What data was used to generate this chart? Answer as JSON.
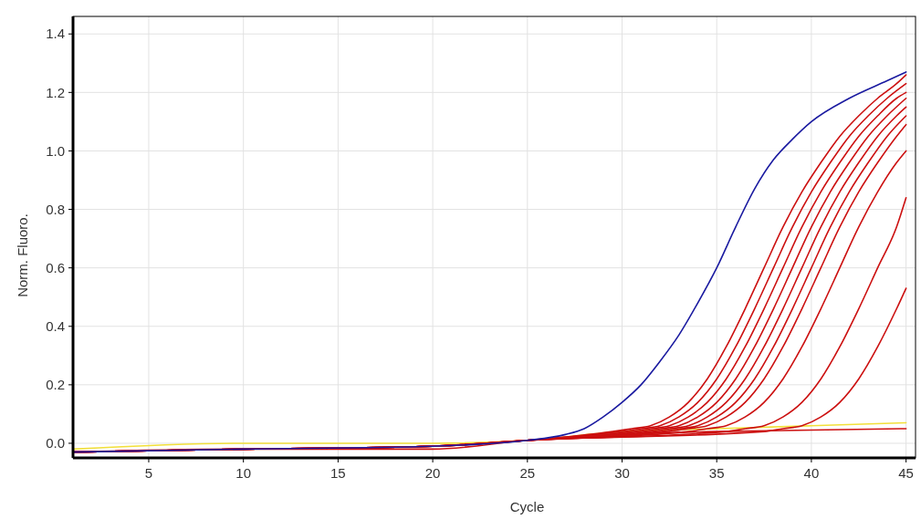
{
  "chart_data": {
    "type": "line",
    "xlabel": "Cycle",
    "ylabel": "Norm. Fluoro.",
    "xlim": [
      1,
      45.5
    ],
    "ylim": [
      -0.05,
      1.46
    ],
    "xticks": [
      5,
      10,
      15,
      20,
      25,
      30,
      35,
      40,
      45
    ],
    "yticks": [
      {
        "value": 0,
        "label": "0.0"
      },
      {
        "value": 0.2,
        "label": "0.2"
      },
      {
        "value": 0.4,
        "label": "0.4"
      },
      {
        "value": 0.6,
        "label": "0.6"
      },
      {
        "value": 0.8,
        "label": "0.8"
      },
      {
        "value": 1,
        "label": "1.0"
      },
      {
        "value": 1.2,
        "label": "1.2"
      },
      {
        "value": 1.4,
        "label": "1.4"
      }
    ],
    "grid": true,
    "marker": "none",
    "line_style": "solid",
    "series": [
      {
        "color": "#f2e03a",
        "x": [
          1,
          10,
          20,
          25,
          30,
          35,
          40,
          45
        ],
        "values": [
          -0.02,
          0,
          0,
          0.01,
          0.04,
          0.05,
          0.06,
          0.07
        ]
      },
      {
        "color": "#cc1010",
        "x": [
          1,
          10,
          20,
          25,
          30,
          35,
          40,
          45
        ],
        "values": [
          -0.03,
          -0.02,
          -0.02,
          0.01,
          0.03,
          0.04,
          0.045,
          0.05
        ]
      },
      {
        "color": "#cc1010",
        "x": [
          1,
          10,
          20,
          25,
          29.5,
          30.5,
          31.5,
          32.5,
          33.5,
          34.5,
          35.5,
          36.5,
          37.5,
          38.5,
          39.5,
          40.5,
          41.5,
          42.5,
          43.5,
          44.5,
          45
        ],
        "values": [
          -0.03,
          -0.02,
          -0.01,
          0.01,
          0.04,
          0.05,
          0.06,
          0.09,
          0.14,
          0.22,
          0.33,
          0.46,
          0.6,
          0.74,
          0.86,
          0.96,
          1.05,
          1.12,
          1.18,
          1.23,
          1.26
        ]
      },
      {
        "color": "#cc1010",
        "x": [
          1,
          10,
          20,
          25,
          30,
          31,
          32,
          33,
          34,
          35,
          36,
          37,
          38,
          39,
          40,
          41,
          42,
          43,
          44,
          45
        ],
        "values": [
          -0.03,
          -0.02,
          -0.01,
          0.01,
          0.04,
          0.05,
          0.06,
          0.09,
          0.14,
          0.22,
          0.33,
          0.46,
          0.6,
          0.74,
          0.86,
          0.96,
          1.05,
          1.12,
          1.18,
          1.23
        ]
      },
      {
        "color": "#cc1010",
        "x": [
          1,
          10,
          20,
          25,
          30.5,
          31.5,
          32.5,
          33.5,
          34.5,
          35.5,
          36.5,
          37.5,
          38.5,
          39.5,
          40.5,
          41.5,
          42.5,
          43.5,
          44.5,
          45
        ],
        "values": [
          -0.03,
          -0.02,
          -0.01,
          0.01,
          0.04,
          0.05,
          0.06,
          0.09,
          0.14,
          0.22,
          0.33,
          0.46,
          0.6,
          0.74,
          0.86,
          0.96,
          1.05,
          1.12,
          1.18,
          1.2
        ]
      },
      {
        "color": "#cc1010",
        "x": [
          1,
          10,
          20,
          25,
          31,
          32,
          33,
          34,
          35,
          36,
          37,
          38,
          39,
          40,
          41,
          42,
          43,
          44,
          45
        ],
        "values": [
          -0.03,
          -0.02,
          -0.01,
          0.01,
          0.04,
          0.05,
          0.06,
          0.09,
          0.14,
          0.22,
          0.33,
          0.46,
          0.6,
          0.74,
          0.86,
          0.96,
          1.05,
          1.12,
          1.18
        ]
      },
      {
        "color": "#cc1010",
        "x": [
          1,
          10,
          20,
          25,
          31.5,
          32.5,
          33.5,
          34.5,
          35.5,
          36.5,
          37.5,
          38.5,
          39.5,
          40.5,
          41.5,
          42.5,
          43.5,
          44.5,
          45
        ],
        "values": [
          -0.03,
          -0.02,
          -0.01,
          0.01,
          0.04,
          0.05,
          0.06,
          0.09,
          0.14,
          0.22,
          0.33,
          0.46,
          0.6,
          0.74,
          0.86,
          0.96,
          1.05,
          1.12,
          1.15
        ]
      },
      {
        "color": "#cc1010",
        "x": [
          1,
          10,
          20,
          25,
          32,
          33,
          34,
          35,
          36,
          37,
          38,
          39,
          40,
          41,
          42,
          43,
          44,
          45
        ],
        "values": [
          -0.03,
          -0.02,
          -0.01,
          0.01,
          0.04,
          0.05,
          0.06,
          0.09,
          0.14,
          0.22,
          0.33,
          0.46,
          0.6,
          0.74,
          0.86,
          0.96,
          1.05,
          1.12
        ]
      },
      {
        "color": "#cc1010",
        "x": [
          1,
          10,
          20,
          25,
          32.5,
          33.5,
          34.5,
          35.5,
          36.5,
          37.5,
          38.5,
          39.5,
          40.5,
          41.5,
          42.5,
          43.5,
          44.5,
          45
        ],
        "values": [
          -0.03,
          -0.02,
          -0.01,
          0.01,
          0.04,
          0.05,
          0.06,
          0.09,
          0.14,
          0.22,
          0.33,
          0.46,
          0.6,
          0.74,
          0.86,
          0.96,
          1.05,
          1.09
        ]
      },
      {
        "color": "#cc1010",
        "x": [
          1,
          10,
          20,
          25,
          33.5,
          34.5,
          35.5,
          36.5,
          37.5,
          38.5,
          39.5,
          40.5,
          41.5,
          42.5,
          43.5,
          44.5,
          45
        ],
        "values": [
          -0.03,
          -0.02,
          -0.01,
          0.01,
          0.04,
          0.05,
          0.06,
          0.09,
          0.14,
          0.22,
          0.33,
          0.46,
          0.6,
          0.74,
          0.86,
          0.96,
          1.0
        ]
      },
      {
        "color": "#cc1010",
        "x": [
          1,
          10,
          20,
          25,
          35.5,
          36.5,
          37.5,
          38.5,
          39.5,
          40.5,
          41.5,
          42.5,
          43.5,
          44.5,
          45
        ],
        "values": [
          -0.03,
          -0.02,
          -0.01,
          0.01,
          0.04,
          0.05,
          0.06,
          0.09,
          0.14,
          0.22,
          0.33,
          0.46,
          0.6,
          0.74,
          0.84
        ]
      },
      {
        "color": "#cc1010",
        "x": [
          1,
          10,
          20,
          25,
          37.5,
          38.5,
          39.5,
          40.5,
          41.5,
          42.5,
          43.5,
          44.5,
          45
        ],
        "values": [
          -0.03,
          -0.02,
          -0.01,
          0.01,
          0.04,
          0.05,
          0.06,
          0.09,
          0.14,
          0.22,
          0.33,
          0.46,
          0.53
        ]
      },
      {
        "color": "#1a1aa0",
        "x": [
          1,
          10,
          20,
          25,
          27,
          28,
          29,
          30,
          31,
          32,
          33,
          34,
          35,
          36,
          37,
          38,
          39,
          40,
          42,
          44,
          45
        ],
        "values": [
          -0.03,
          -0.02,
          -0.01,
          0.01,
          0.03,
          0.05,
          0.09,
          0.14,
          0.2,
          0.28,
          0.37,
          0.48,
          0.6,
          0.74,
          0.87,
          0.97,
          1.04,
          1.1,
          1.18,
          1.24,
          1.27
        ]
      }
    ]
  }
}
